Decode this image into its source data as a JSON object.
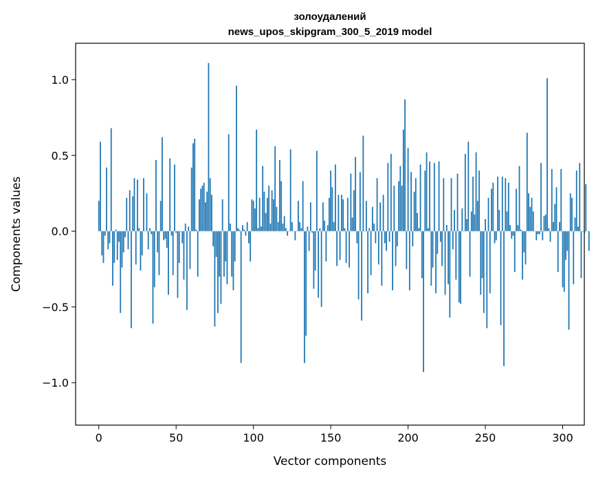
{
  "chart_data": {
    "type": "bar",
    "title_line1": "золоудалений",
    "title_line2": "news_upos_skipgram_300_5_2019 model",
    "xlabel": "Vector components",
    "ylabel": "Components values",
    "xlim": [
      -15,
      314
    ],
    "ylim": [
      -1.28,
      1.24
    ],
    "xticks": [
      0,
      50,
      100,
      150,
      200,
      250,
      300
    ],
    "xtick_labels": [
      "0",
      "50",
      "100",
      "150",
      "200",
      "250",
      "300"
    ],
    "yticks": [
      -1.0,
      -0.5,
      0.0,
      0.5,
      1.0
    ],
    "ytick_labels": [
      "−1.0",
      "−0.5",
      "0.0",
      "0.5",
      "1.0"
    ],
    "bar_color": "#1f77b4",
    "values": [
      0.2,
      0.59,
      -0.16,
      -0.21,
      -0.03,
      0.42,
      -0.12,
      -0.08,
      0.68,
      -0.36,
      -0.21,
      0.01,
      -0.19,
      -0.07,
      -0.54,
      -0.24,
      -0.14,
      -0.04,
      0.22,
      -0.12,
      0.27,
      -0.64,
      0.23,
      0.35,
      -0.22,
      0.34,
      0.02,
      -0.26,
      -0.16,
      0.35,
      0.0,
      0.25,
      -0.12,
      0.02,
      -0.02,
      -0.61,
      -0.37,
      0.47,
      -0.14,
      -0.29,
      0.2,
      0.62,
      -0.06,
      -0.05,
      -0.11,
      -0.42,
      0.48,
      -0.03,
      -0.29,
      0.44,
      -0.01,
      -0.44,
      -0.21,
      0.0,
      -0.08,
      -0.32,
      0.05,
      -0.52,
      0.03,
      -0.25,
      0.42,
      0.58,
      0.61,
      0.01,
      -0.3,
      0.21,
      0.28,
      0.3,
      0.32,
      0.19,
      0.26,
      1.11,
      0.35,
      0.24,
      -0.1,
      -0.63,
      -0.17,
      -0.54,
      -0.3,
      -0.48,
      0.21,
      -0.3,
      -0.2,
      -0.35,
      0.64,
      0.05,
      -0.3,
      -0.39,
      -0.2,
      0.96,
      0.02,
      0.01,
      -0.87,
      0.04,
      0.01,
      -0.03,
      0.06,
      -0.08,
      -0.2,
      0.21,
      0.2,
      0.15,
      0.67,
      0.02,
      0.22,
      0.03,
      0.43,
      0.26,
      0.12,
      0.22,
      0.3,
      0.05,
      0.27,
      0.21,
      0.56,
      0.16,
      0.06,
      0.47,
      0.33,
      0.05,
      0.1,
      0.02,
      -0.03,
      0.0,
      0.54,
      0.06,
      0.0,
      -0.06,
      0.0,
      0.2,
      0.06,
      0.02,
      0.33,
      -0.87,
      -0.69,
      0.03,
      -0.13,
      0.19,
      -0.01,
      -0.38,
      -0.26,
      0.53,
      -0.44,
      0.02,
      -0.5,
      0.19,
      0.07,
      -0.2,
      0.04,
      0.22,
      0.4,
      0.29,
      0.06,
      0.44,
      -0.23,
      0.24,
      -0.19,
      0.24,
      0.21,
      0.02,
      -0.21,
      0.22,
      -0.24,
      0.38,
      0.09,
      0.27,
      0.49,
      -0.08,
      -0.45,
      0.39,
      -0.59,
      0.63,
      0.0,
      0.2,
      -0.41,
      0.02,
      -0.29,
      0.16,
      0.05,
      -0.08,
      0.35,
      -0.22,
      0.19,
      -0.36,
      0.24,
      -0.08,
      -0.13,
      0.45,
      -0.07,
      0.51,
      -0.39,
      0.3,
      -0.23,
      -0.1,
      0.33,
      0.43,
      0.3,
      0.67,
      0.87,
      -0.25,
      0.55,
      -0.39,
      0.39,
      -0.1,
      0.26,
      0.35,
      0.12,
      0.02,
      0.44,
      -0.31,
      -0.93,
      0.4,
      0.52,
      0.02,
      0.46,
      -0.36,
      -0.24,
      0.45,
      -0.41,
      -0.15,
      0.46,
      -0.07,
      -0.23,
      0.35,
      -0.42,
      0.04,
      -0.35,
      -0.57,
      0.35,
      -0.12,
      0.14,
      -0.32,
      0.38,
      -0.47,
      -0.48,
      0.15,
      0.0,
      0.51,
      0.08,
      0.59,
      -0.3,
      0.13,
      0.36,
      0.11,
      0.52,
      0.2,
      0.4,
      -0.42,
      -0.31,
      -0.54,
      0.08,
      -0.64,
      0.22,
      -0.41,
      0.28,
      0.32,
      -0.08,
      -0.06,
      0.36,
      0.14,
      -0.62,
      0.36,
      -0.89,
      0.35,
      0.13,
      0.32,
      0.04,
      -0.05,
      -0.03,
      -0.27,
      0.28,
      0.04,
      0.43,
      0.01,
      -0.32,
      -0.14,
      -0.22,
      0.65,
      0.25,
      0.16,
      0.22,
      0.13,
      0.0,
      -0.06,
      -0.02,
      -0.02,
      0.45,
      -0.06,
      0.1,
      0.11,
      1.01,
      0.02,
      -0.07,
      0.41,
      0.06,
      0.18,
      0.29,
      -0.27,
      0.06,
      0.41,
      -0.37,
      -0.4,
      -0.19,
      -0.13,
      -0.65,
      0.25,
      0.22,
      -0.35,
      0.09,
      0.4,
      0.03,
      0.45,
      -0.31,
      0.0,
      -0.01,
      0.31,
      0.0,
      -0.13
    ]
  }
}
